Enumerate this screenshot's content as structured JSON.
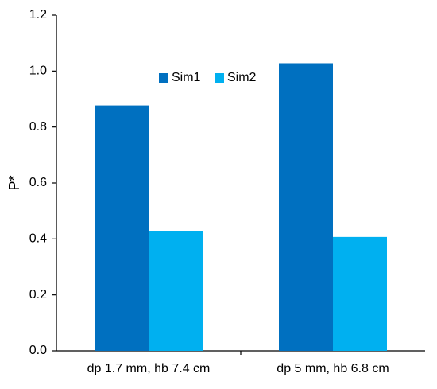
{
  "chart_data": {
    "type": "bar",
    "title": "",
    "xlabel": "",
    "ylabel": "P*",
    "ylim": [
      0,
      1.2
    ],
    "yticks": [
      "0.0",
      "0.2",
      "0.4",
      "0.6",
      "0.8",
      "1.0",
      "1.2"
    ],
    "categories": [
      "dp 1.7 mm, hb 7.4 cm",
      "dp 5 mm, hb 6.8 cm"
    ],
    "series": [
      {
        "name": "Sim1",
        "color": "#0070C0",
        "values": [
          0.877,
          1.028
        ]
      },
      {
        "name": "Sim2",
        "color": "#00B0F0",
        "values": [
          0.427,
          0.407
        ]
      }
    ],
    "grid": false,
    "legend_position": "top-center"
  }
}
